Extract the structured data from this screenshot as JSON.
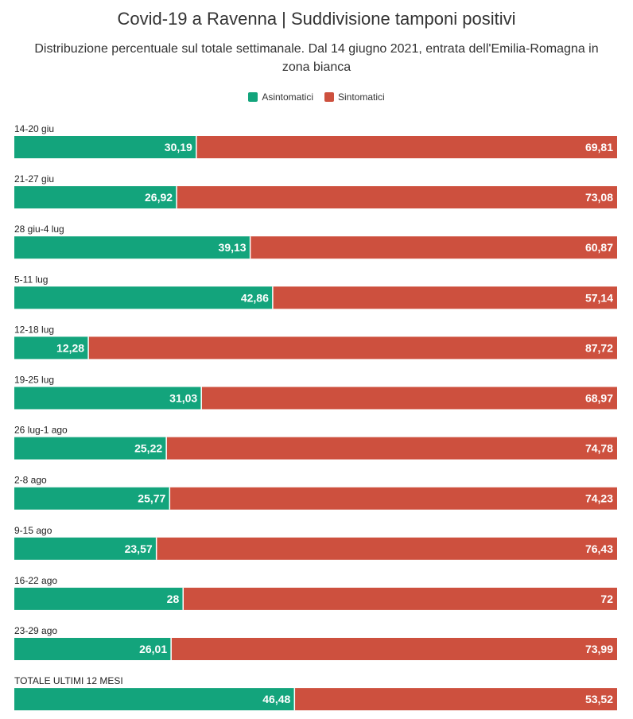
{
  "chart_data": {
    "type": "bar",
    "orientation": "horizontal",
    "stacked": true,
    "title": "Covid-19 a Ravenna | Suddivisione tamponi positivi",
    "subtitle": "Distribuzione percentuale sul totale settimanale. Dal 14 giugno 2021, entrata dell'Emilia-Romagna in zona bianca",
    "legend_position": "top-center",
    "categories": [
      "14-20 giu",
      "21-27 giu",
      "28 giu-4 lug",
      "5-11 lug",
      "12-18 lug",
      "19-25 lug",
      "26 lug-1 ago",
      "2-8 ago",
      "9-15 ago",
      "16-22 ago",
      "23-29 ago",
      "TOTALE ULTIMI 12 MESI"
    ],
    "series": [
      {
        "name": "Asintomatici",
        "color": "#13a47c",
        "values": [
          30.19,
          26.92,
          39.13,
          42.86,
          12.28,
          31.03,
          25.22,
          25.77,
          23.57,
          28,
          26.01,
          46.48
        ],
        "labels": [
          "30,19",
          "26,92",
          "39,13",
          "42,86",
          "12,28",
          "31,03",
          "25,22",
          "25,77",
          "23,57",
          "28",
          "26,01",
          "46,48"
        ]
      },
      {
        "name": "Sintomatici",
        "color": "#cd503e",
        "values": [
          69.81,
          73.08,
          60.87,
          57.14,
          87.72,
          68.97,
          74.78,
          74.23,
          76.43,
          72,
          73.99,
          53.52
        ],
        "labels": [
          "69,81",
          "73,08",
          "60,87",
          "57,14",
          "87,72",
          "68,97",
          "74,78",
          "74,23",
          "76,43",
          "72",
          "73,99",
          "53,52"
        ]
      }
    ],
    "xlim": [
      0,
      100
    ],
    "grid": false
  }
}
